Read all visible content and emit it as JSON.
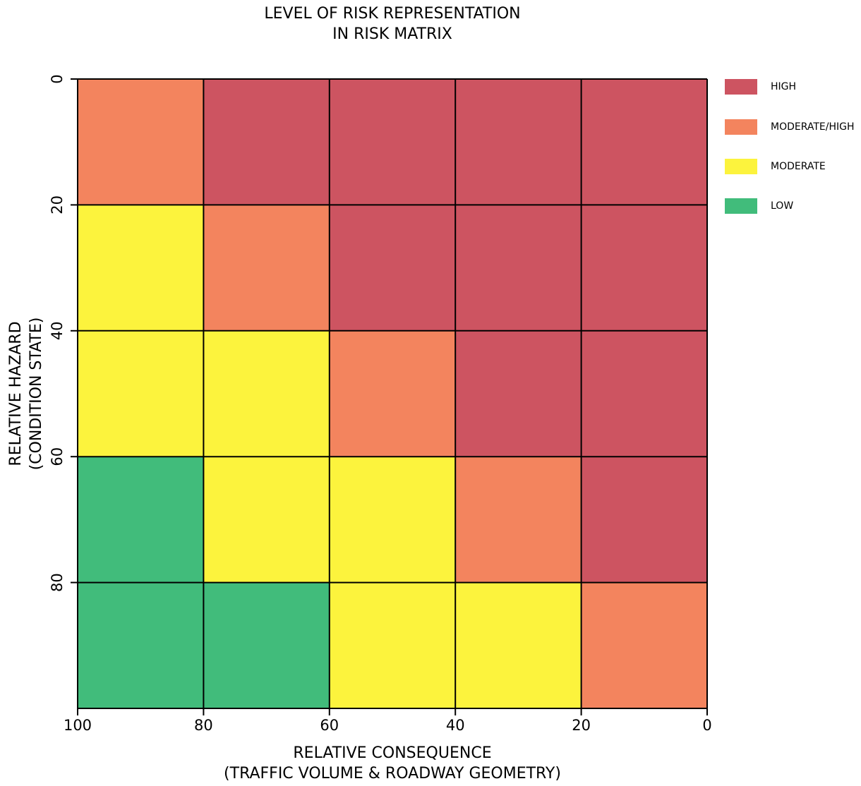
{
  "chart_data": {
    "type": "heatmap",
    "title": [
      "LEVEL OF RISK REPRESENTATION",
      "IN RISK MATRIX"
    ],
    "xlabel": [
      "RELATIVE CONSEQUENCE",
      "(TRAFFIC VOLUME & ROADWAY GEOMETRY)"
    ],
    "ylabel": [
      "RELATIVE HAZARD",
      "(CONDITION STATE)"
    ],
    "x_ticks": [
      "100",
      "80",
      "60",
      "40",
      "20",
      "0"
    ],
    "y_ticks": [
      "0",
      "20",
      "40",
      "60",
      "80"
    ],
    "xlim": [
      100,
      0
    ],
    "ylim": [
      0,
      100
    ],
    "levels": {
      "H": {
        "label": "HIGH",
        "color": "#cd5461"
      },
      "MH": {
        "label": "MODERATE/HIGH",
        "color": "#f3845e"
      },
      "M": {
        "label": "MODERATE",
        "color": "#fcf33d"
      },
      "L": {
        "label": "LOW",
        "color": "#41bc7b"
      }
    },
    "legend_order": [
      "H",
      "MH",
      "M",
      "L"
    ],
    "legend_position": "right",
    "grid": [
      [
        "MH",
        "H",
        "H",
        "H",
        "H"
      ],
      [
        "M",
        "MH",
        "H",
        "H",
        "H"
      ],
      [
        "M",
        "M",
        "MH",
        "H",
        "H"
      ],
      [
        "L",
        "M",
        "M",
        "MH",
        "H"
      ],
      [
        "L",
        "L",
        "M",
        "M",
        "MH"
      ]
    ]
  }
}
